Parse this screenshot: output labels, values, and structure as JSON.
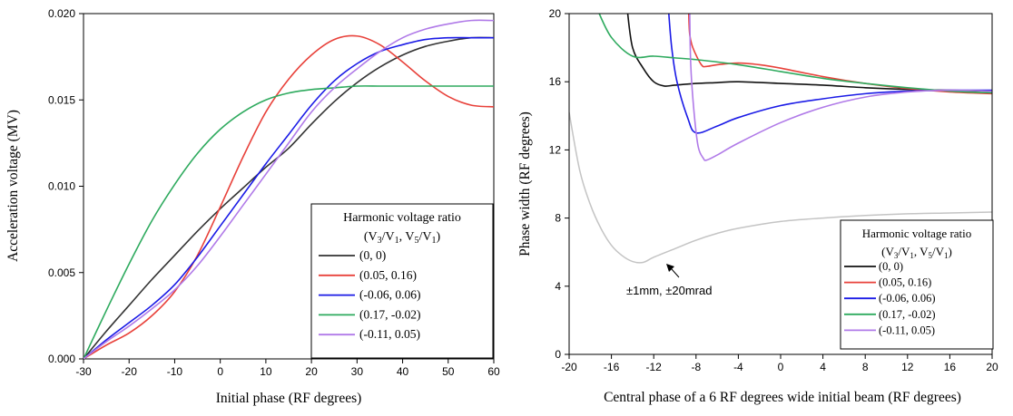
{
  "chart_data": [
    {
      "type": "line",
      "xlabel": "Initial phase (RF degrees)",
      "ylabel": "Acceleration voltage (MV)",
      "xlim": [
        -30,
        60
      ],
      "ylim": [
        0,
        0.02
      ],
      "xticks": [
        "-30",
        "-20",
        "-10",
        "0",
        "10",
        "20",
        "30",
        "40",
        "50",
        "60"
      ],
      "yticks": [
        "0.000",
        "0.005",
        "0.010",
        "0.015",
        "0.020"
      ],
      "grid": false,
      "legend": {
        "title_line1": "Harmonic voltage ratio",
        "title_line2": "(V3/V1, V5/V1)",
        "position": "bottom-right"
      },
      "series": [
        {
          "name": "(0, 0)",
          "color": "#333333",
          "x": [
            -30,
            -25,
            -20,
            -15,
            -10,
            -5,
            0,
            5,
            10,
            15,
            20,
            25,
            30,
            35,
            40,
            45,
            50,
            55,
            60
          ],
          "y": [
            0,
            0.0016,
            0.0031,
            0.0046,
            0.006,
            0.0074,
            0.0087,
            0.0099,
            0.0111,
            0.0122,
            0.0136,
            0.0149,
            0.016,
            0.0169,
            0.0176,
            0.0181,
            0.0184,
            0.0186,
            0.0186
          ]
        },
        {
          "name": "(0.05, 0.16)",
          "color": "#e8413a",
          "x": [
            -30,
            -25,
            -20,
            -15,
            -10,
            -5,
            0,
            5,
            10,
            15,
            20,
            25,
            30,
            35,
            40,
            45,
            50,
            55,
            60
          ],
          "y": [
            0,
            0.0008,
            0.0015,
            0.0025,
            0.0039,
            0.006,
            0.0088,
            0.0117,
            0.0143,
            0.0162,
            0.0176,
            0.0185,
            0.0187,
            0.0182,
            0.0172,
            0.0161,
            0.0152,
            0.0147,
            0.0146
          ]
        },
        {
          "name": "(-0.06, 0.06)",
          "color": "#1a1ae6",
          "x": [
            -30,
            -25,
            -20,
            -15,
            -10,
            -5,
            0,
            5,
            10,
            15,
            20,
            25,
            30,
            35,
            40,
            45,
            50,
            55,
            60
          ],
          "y": [
            0,
            0.0011,
            0.0021,
            0.0031,
            0.0043,
            0.0059,
            0.0077,
            0.0095,
            0.0113,
            0.013,
            0.0147,
            0.0161,
            0.0171,
            0.0178,
            0.0182,
            0.0185,
            0.0186,
            0.0186,
            0.0186
          ]
        },
        {
          "name": "(0.17, -0.02)",
          "color": "#2eaa5e",
          "x": [
            -30,
            -25,
            -20,
            -15,
            -10,
            -5,
            0,
            5,
            10,
            15,
            20,
            25,
            30,
            35,
            40,
            45,
            50,
            55,
            60
          ],
          "y": [
            0,
            0.0028,
            0.0055,
            0.008,
            0.0101,
            0.0119,
            0.0133,
            0.0143,
            0.015,
            0.0154,
            0.0156,
            0.0157,
            0.0158,
            0.0158,
            0.0158,
            0.0158,
            0.0158,
            0.0158,
            0.0158
          ]
        },
        {
          "name": "(-0.11, 0.05)",
          "color": "#b07ae8",
          "x": [
            -30,
            -25,
            -20,
            -15,
            -10,
            -5,
            0,
            5,
            10,
            15,
            20,
            25,
            30,
            35,
            40,
            45,
            50,
            55,
            60
          ],
          "y": [
            0,
            0.001,
            0.0019,
            0.0029,
            0.004,
            0.0054,
            0.0071,
            0.0089,
            0.0107,
            0.0125,
            0.0143,
            0.0157,
            0.0168,
            0.0178,
            0.0186,
            0.0191,
            0.0194,
            0.0196,
            0.0196
          ]
        }
      ]
    },
    {
      "type": "line",
      "xlabel": "Central phase of a 6 RF degrees wide initial beam (RF degrees)",
      "ylabel": "Phase width (RF degrees)",
      "xlim": [
        -20,
        20
      ],
      "ylim": [
        0,
        20
      ],
      "xticks": [
        "-20",
        "-16",
        "-12",
        "-8",
        "-4",
        "0",
        "4",
        "8",
        "12",
        "16",
        "20"
      ],
      "yticks": [
        "0",
        "4",
        "8",
        "12",
        "16",
        "20"
      ],
      "grid": false,
      "annotation": {
        "text": "±1mm, ±20mrad",
        "x": -13,
        "y": 5.4
      },
      "legend": {
        "title_line1": "Harmonic voltage ratio",
        "title_line2": "(V3/V1, V5/V1)",
        "position": "bottom-right"
      },
      "series": [
        {
          "name": "",
          "color": "#c4c4c4",
          "x": [
            -20,
            -19,
            -18,
            -17,
            -16,
            -15,
            -14,
            -13,
            -12,
            -10,
            -8,
            -6,
            -4,
            0,
            4,
            8,
            12,
            16,
            20
          ],
          "y": [
            14.2,
            10.8,
            8.8,
            7.4,
            6.4,
            5.8,
            5.45,
            5.4,
            5.7,
            6.2,
            6.7,
            7.1,
            7.4,
            7.8,
            8.0,
            8.15,
            8.25,
            8.3,
            8.35
          ]
        },
        {
          "name": "(0, 0)",
          "color": "#111111",
          "x": [
            -14.5,
            -14,
            -13,
            -12,
            -11,
            -10,
            -8,
            -6,
            -4,
            0,
            4,
            8,
            12,
            16,
            20
          ],
          "y": [
            20.2,
            18.0,
            16.8,
            16.0,
            15.75,
            15.8,
            15.9,
            15.95,
            16.0,
            15.9,
            15.8,
            15.65,
            15.55,
            15.5,
            15.45
          ]
        },
        {
          "name": "(0.05, 0.16)",
          "color": "#e8413a",
          "x": [
            -8.7,
            -8.6,
            -8.3,
            -7.5,
            -7,
            -6,
            -4,
            -2,
            0,
            4,
            8,
            12,
            16,
            20
          ],
          "y": [
            20.2,
            18.8,
            18.0,
            17.0,
            16.9,
            17.0,
            17.1,
            17.0,
            16.8,
            16.3,
            15.9,
            15.6,
            15.4,
            15.3
          ]
        },
        {
          "name": "(-0.06, 0.06)",
          "color": "#1a1ae6",
          "x": [
            -10.6,
            -10.3,
            -9.8,
            -8.8,
            -8,
            -6,
            -4,
            0,
            4,
            8,
            12,
            16,
            20
          ],
          "y": [
            20.2,
            18.0,
            16.0,
            13.9,
            13.0,
            13.4,
            13.9,
            14.6,
            15.0,
            15.3,
            15.45,
            15.5,
            15.5
          ]
        },
        {
          "name": "(0.17, -0.02)",
          "color": "#2eaa5e",
          "x": [
            -17.3,
            -16,
            -14,
            -12,
            -10,
            -8,
            -4,
            0,
            4,
            8,
            12,
            16,
            20
          ],
          "y": [
            20.2,
            18.6,
            17.5,
            17.5,
            17.4,
            17.3,
            17.0,
            16.6,
            16.2,
            15.9,
            15.65,
            15.45,
            15.35
          ]
        },
        {
          "name": "(-0.11, 0.05)",
          "color": "#b07ae8",
          "x": [
            -8.6,
            -8.5,
            -8.2,
            -7.8,
            -7.3,
            -7,
            -6,
            -4,
            0,
            4,
            8,
            12,
            16,
            20
          ],
          "y": [
            20.2,
            17.0,
            14.3,
            12.2,
            11.5,
            11.4,
            11.7,
            12.4,
            13.6,
            14.5,
            15.1,
            15.4,
            15.5,
            15.45
          ]
        }
      ]
    }
  ]
}
